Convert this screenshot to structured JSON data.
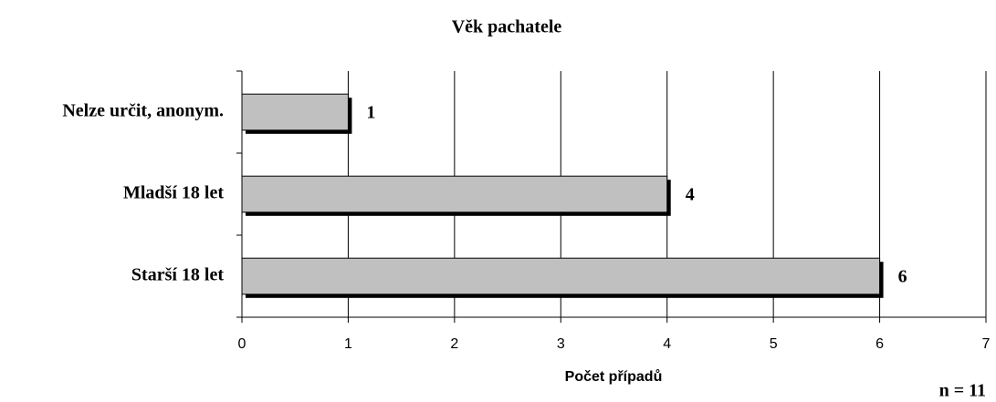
{
  "chart_data": {
    "type": "bar",
    "orientation": "horizontal",
    "title": "Věk pachatele",
    "categories": [
      "Nelze určit, anonym.",
      "Mladší 18 let",
      "Starší 18 let"
    ],
    "values": [
      1,
      4,
      6
    ],
    "color": "#c0c0c0",
    "xlabel": "Počet případů",
    "xlim": [
      0,
      7
    ],
    "xticks": [
      0,
      1,
      2,
      3,
      4,
      5,
      6,
      7
    ],
    "grid": true,
    "annotation": "n = 11"
  }
}
